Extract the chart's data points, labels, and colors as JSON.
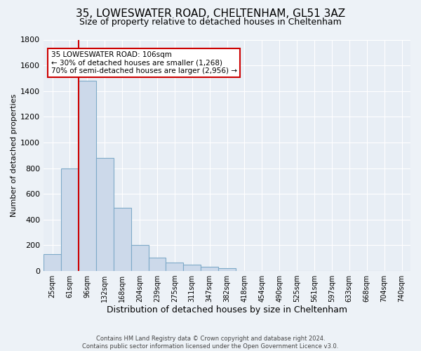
{
  "title": "35, LOWESWATER ROAD, CHELTENHAM, GL51 3AZ",
  "subtitle": "Size of property relative to detached houses in Cheltenham",
  "xlabel": "Distribution of detached houses by size in Cheltenham",
  "ylabel": "Number of detached properties",
  "footer_lines": [
    "Contains HM Land Registry data © Crown copyright and database right 2024.",
    "Contains public sector information licensed under the Open Government Licence v3.0."
  ],
  "bar_labels": [
    "25sqm",
    "61sqm",
    "96sqm",
    "132sqm",
    "168sqm",
    "204sqm",
    "239sqm",
    "275sqm",
    "311sqm",
    "347sqm",
    "382sqm",
    "418sqm",
    "454sqm",
    "490sqm",
    "525sqm",
    "561sqm",
    "597sqm",
    "633sqm",
    "668sqm",
    "704sqm",
    "740sqm"
  ],
  "bar_values": [
    130,
    800,
    1480,
    880,
    490,
    200,
    105,
    65,
    50,
    30,
    20,
    0,
    0,
    0,
    0,
    0,
    0,
    0,
    0,
    0,
    0
  ],
  "bar_color": "#ccd9ea",
  "bar_edge_color": "#7eaac8",
  "ylim": [
    0,
    1800
  ],
  "yticks": [
    0,
    200,
    400,
    600,
    800,
    1000,
    1200,
    1400,
    1600,
    1800
  ],
  "red_line_x": 2.0,
  "annotation_title": "35 LOWESWATER ROAD: 106sqm",
  "annotation_line1": "← 30% of detached houses are smaller (1,268)",
  "annotation_line2": "70% of semi-detached houses are larger (2,956) →",
  "annotation_box_facecolor": "#ffffff",
  "annotation_box_edgecolor": "#cc0000",
  "bg_color": "#edf2f7",
  "plot_bg_color": "#e8eef5",
  "grid_color": "#ffffff",
  "title_fontsize": 11,
  "subtitle_fontsize": 9,
  "ylabel_fontsize": 8,
  "xlabel_fontsize": 9
}
